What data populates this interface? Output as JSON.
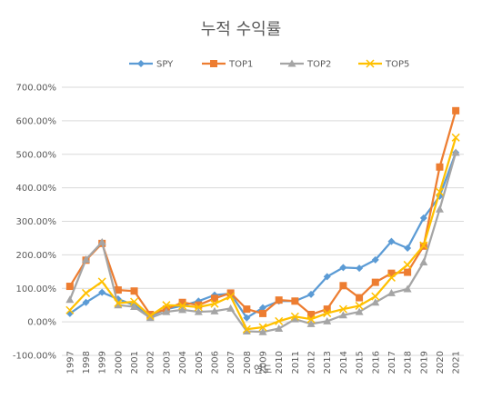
{
  "chart_data": {
    "type": "line",
    "title": "누적 수익률",
    "xlabel": "연도",
    "ylabel": "",
    "ylim": [
      -100,
      700
    ],
    "y_ticks": [
      "-100.00%",
      "0.00%",
      "100.00%",
      "200.00%",
      "300.00%",
      "400.00%",
      "500.00%",
      "600.00%",
      "700.00%"
    ],
    "grid": true,
    "legend_position": "top",
    "categories": [
      "1997",
      "1998",
      "1999",
      "2000",
      "2001",
      "2002",
      "2003",
      "2004",
      "2005",
      "2006",
      "2007",
      "2008",
      "2009",
      "2010",
      "2011",
      "2012",
      "2013",
      "2014",
      "2015",
      "2016",
      "2017",
      "2018",
      "2019",
      "2020",
      "2021"
    ],
    "series": [
      {
        "name": "SPY",
        "color": "#5b9bd5",
        "marker": "diamond",
        "values": [
          25,
          58,
          88,
          68,
          50,
          18,
          38,
          48,
          62,
          80,
          84,
          12,
          42,
          62,
          62,
          82,
          135,
          162,
          160,
          185,
          240,
          220,
          310,
          375,
          505
        ]
      },
      {
        "name": "TOP1",
        "color": "#ed7d31",
        "marker": "square",
        "values": [
          106,
          184,
          234,
          95,
          92,
          22,
          38,
          58,
          50,
          70,
          86,
          38,
          25,
          65,
          62,
          22,
          38,
          108,
          72,
          118,
          145,
          148,
          226,
          462,
          630
        ]
      },
      {
        "name": "TOP2",
        "color": "#a5a5a5",
        "marker": "triangle",
        "values": [
          66,
          186,
          238,
          50,
          45,
          12,
          30,
          36,
          30,
          32,
          40,
          -28,
          -30,
          -20,
          8,
          -6,
          2,
          20,
          30,
          58,
          86,
          98,
          178,
          336,
          505
        ]
      },
      {
        "name": "TOP5",
        "color": "#ffc000",
        "marker": "x",
        "values": [
          35,
          86,
          120,
          56,
          60,
          18,
          50,
          48,
          44,
          54,
          76,
          -22,
          -16,
          2,
          16,
          8,
          26,
          38,
          48,
          76,
          132,
          170,
          228,
          388,
          550
        ]
      }
    ]
  }
}
